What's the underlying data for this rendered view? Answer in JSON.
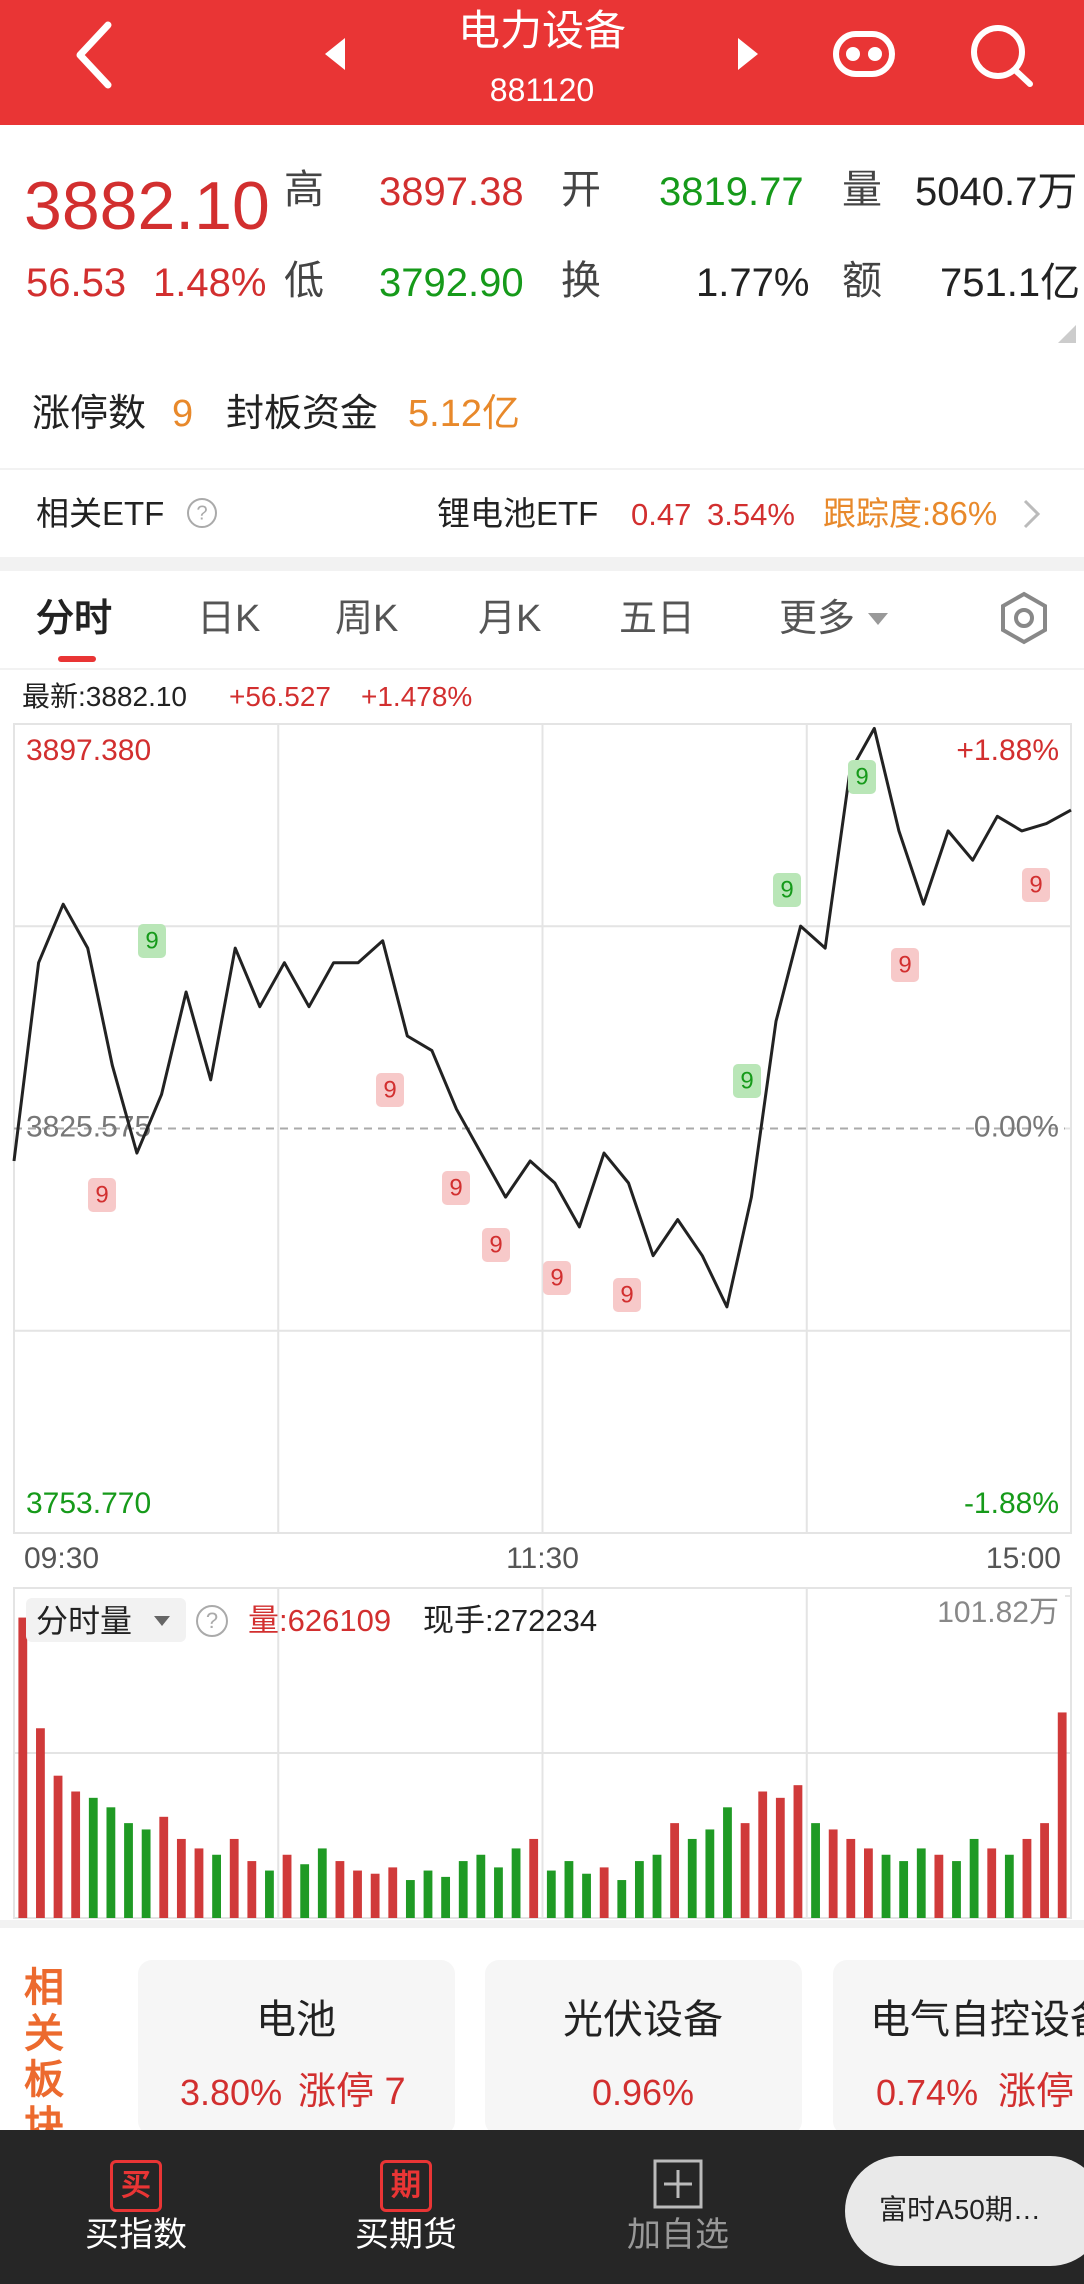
{
  "header": {
    "title": "电力设备",
    "code": "881120"
  },
  "quote": {
    "price": "3882.10",
    "change": "56.53",
    "change_pct": "1.48%",
    "high_label": "高",
    "high": "3897.38",
    "open_label": "开",
    "open": "3819.77",
    "volume_label": "量",
    "volume": "5040.7万",
    "low_label": "低",
    "low": "3792.90",
    "turnover_label": "换",
    "turnover": "1.77%",
    "amount_label": "额",
    "amount": "751.1亿"
  },
  "limit_up": {
    "label": "涨停数",
    "count": "9",
    "seal_label": "封板资金",
    "seal": "5.12亿"
  },
  "etf": {
    "label": "相关ETF",
    "name": "锂电池ETF",
    "change": "0.47",
    "change_pct": "3.54%",
    "tracking": "跟踪度:86%"
  },
  "tabs": [
    "分时",
    "日K",
    "周K",
    "月K",
    "五日",
    "更多"
  ],
  "chart_data": [
    {
      "type": "line",
      "latest": "最新:3882.10",
      "change": "+56.527",
      "change_pct": "+1.478%",
      "color": "#222222",
      "values": [
        3819.8,
        3855.0,
        3865.4,
        3857.6,
        3836.8,
        3821.2,
        3831.6,
        3849.8,
        3834.2,
        3857.6,
        3847.2,
        3855.0,
        3847.2,
        3855.0,
        3855.0,
        3858.9,
        3842.0,
        3839.4,
        3829.0,
        3821.2,
        3813.4,
        3819.8,
        3815.9,
        3808.1,
        3821.2,
        3815.9,
        3803.0,
        3809.4,
        3803.0,
        3793.9,
        3813.4,
        3844.6,
        3861.5,
        3857.6,
        3888.8,
        3896.6,
        3878.4,
        3865.4,
        3878.4,
        3873.2,
        3881.0,
        3878.4,
        3879.7,
        3882.1
      ],
      "time_labels": [
        "09:30",
        "11:30",
        "15:00"
      ],
      "ylim": [
        3753.77,
        3897.38
      ],
      "yticks": [
        {
          "value": 3897.38,
          "label": "3897.380"
        },
        {
          "value": 3825.575,
          "label": "3825.575"
        },
        {
          "value": 3753.77,
          "label": "3753.770"
        }
      ],
      "y2lim": [
        -1.88,
        1.88
      ],
      "y2ticks": [
        {
          "value": 1.88,
          "label": "+1.88%"
        },
        {
          "value": 0,
          "label": "0.00%"
        },
        {
          "value": -1.88,
          "label": "-1.88%"
        }
      ],
      "grid": true,
      "signals": [
        {
          "text": "9",
          "color": "red"
        },
        {
          "text": "9",
          "color": "green"
        },
        {
          "text": "9",
          "color": "red"
        },
        {
          "text": "9",
          "color": "red"
        },
        {
          "text": "9",
          "color": "red"
        },
        {
          "text": "9",
          "color": "red"
        },
        {
          "text": "9",
          "color": "red"
        },
        {
          "text": "9",
          "color": "green"
        },
        {
          "text": "9",
          "color": "green"
        },
        {
          "text": "9",
          "color": "green"
        },
        {
          "text": "9",
          "color": "red"
        },
        {
          "text": "9",
          "color": "red"
        }
      ]
    },
    {
      "type": "bar",
      "title": "分时量",
      "volume": "量:626109",
      "current": "现手:272234",
      "values": [
        95,
        60,
        45,
        40,
        38,
        35,
        30,
        28,
        32,
        25,
        22,
        20,
        25,
        18,
        15,
        20,
        17,
        22,
        18,
        15,
        14,
        16,
        12,
        15,
        13,
        18,
        20,
        16,
        22,
        25,
        15,
        18,
        14,
        16,
        12,
        18,
        20,
        30,
        25,
        28,
        35,
        30,
        40,
        38,
        42,
        30,
        28,
        25,
        22,
        20,
        18,
        22,
        20,
        18,
        25,
        22,
        20,
        25,
        30,
        65
      ],
      "ylim": [
        0,
        101.82
      ],
      "yticks": [
        {
          "value": 101.82,
          "label": "101.82万"
        }
      ],
      "up_color": "#d03a3a",
      "down_color": "#1f9a24"
    }
  ],
  "sectors": {
    "title": "相关板块",
    "items": [
      {
        "name": "电池",
        "change": "3.80%",
        "limit_up": "涨停 7"
      },
      {
        "name": "光伏设备",
        "change": "0.96%"
      },
      {
        "name": "电气自控设备",
        "change": "0.74%",
        "limit_up": "涨停"
      }
    ]
  },
  "nav": {
    "items": [
      {
        "icon": "买",
        "label": "买指数"
      },
      {
        "icon": "期",
        "label": "买期货"
      },
      {
        "label": "加自选"
      }
    ],
    "popup": "富时A50期…"
  }
}
